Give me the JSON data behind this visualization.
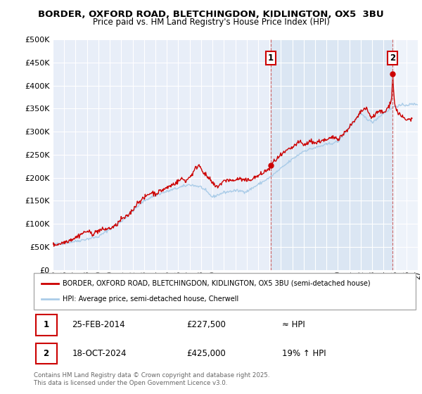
{
  "title": "BORDER, OXFORD ROAD, BLETCHINGDON, KIDLINGTON, OX5  3BU",
  "subtitle": "Price paid vs. HM Land Registry's House Price Index (HPI)",
  "ylim": [
    0,
    500000
  ],
  "yticks": [
    0,
    50000,
    100000,
    150000,
    200000,
    250000,
    300000,
    350000,
    400000,
    450000,
    500000
  ],
  "plot_bg": "#e8eef8",
  "grid_color": "#ffffff",
  "line1_color": "#cc0000",
  "line2_color": "#aacce8",
  "marker1_date": 2014.12,
  "marker1_value": 227500,
  "marker2_date": 2024.8,
  "marker2_value": 425000,
  "legend1": "BORDER, OXFORD ROAD, BLETCHINGDON, KIDLINGTON, OX5 3BU (semi-detached house)",
  "legend2": "HPI: Average price, semi-detached house, Cherwell",
  "table_row1": [
    "1",
    "25-FEB-2014",
    "£227,500",
    "≈ HPI"
  ],
  "table_row2": [
    "2",
    "18-OCT-2024",
    "£425,000",
    "19% ↑ HPI"
  ],
  "copyright": "Contains HM Land Registry data © Crown copyright and database right 2025.\nThis data is licensed under the Open Government Licence v3.0.",
  "xmin": 1995,
  "xmax": 2027
}
